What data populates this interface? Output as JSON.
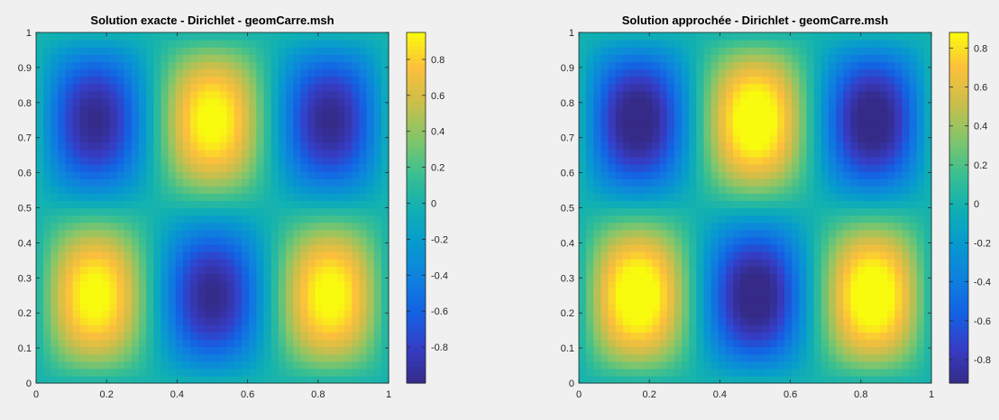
{
  "figure": {
    "background": "#f0f0f0"
  },
  "chart_data": [
    {
      "type": "heatmap",
      "title": "Solution exacte - Dirichlet - geomCarre.msh",
      "xlabel": "",
      "ylabel": "",
      "xlim": [
        0,
        1
      ],
      "ylim": [
        0,
        1
      ],
      "xticks": [
        "0",
        "0.2",
        "0.4",
        "0.6",
        "0.8",
        "1"
      ],
      "yticks": [
        "0",
        "0.1",
        "0.2",
        "0.3",
        "0.4",
        "0.5",
        "0.6",
        "0.7",
        "0.8",
        "0.9",
        "1"
      ],
      "function": "sin(3*pi*x)*sin(2*pi*y)",
      "grid": false,
      "colormap": "parula",
      "colorbar": {
        "range": [
          -1,
          0.95
        ],
        "ticks": [
          "-0.8",
          "-0.6",
          "-0.4",
          "-0.2",
          "0",
          "0.2",
          "0.4",
          "0.6",
          "0.8"
        ],
        "placement": "right"
      }
    },
    {
      "type": "heatmap",
      "title": "Solution approchée - Dirichlet - geomCarre.msh",
      "xlabel": "",
      "ylabel": "",
      "xlim": [
        0,
        1
      ],
      "ylim": [
        0,
        1
      ],
      "xticks": [
        "0",
        "0.2",
        "0.4",
        "0.6",
        "0.8",
        "1"
      ],
      "yticks": [
        "0",
        "0.1",
        "0.2",
        "0.3",
        "0.4",
        "0.5",
        "0.6",
        "0.7",
        "0.8",
        "0.9",
        "1"
      ],
      "function": "sin(3*pi*x)*sin(2*pi*y)",
      "grid": false,
      "colormap": "parula",
      "colorbar": {
        "range": [
          -0.92,
          0.88
        ],
        "ticks": [
          "-0.8",
          "-0.6",
          "-0.4",
          "-0.2",
          "0",
          "0.2",
          "0.4",
          "0.6",
          "0.8"
        ],
        "placement": "right"
      }
    }
  ]
}
